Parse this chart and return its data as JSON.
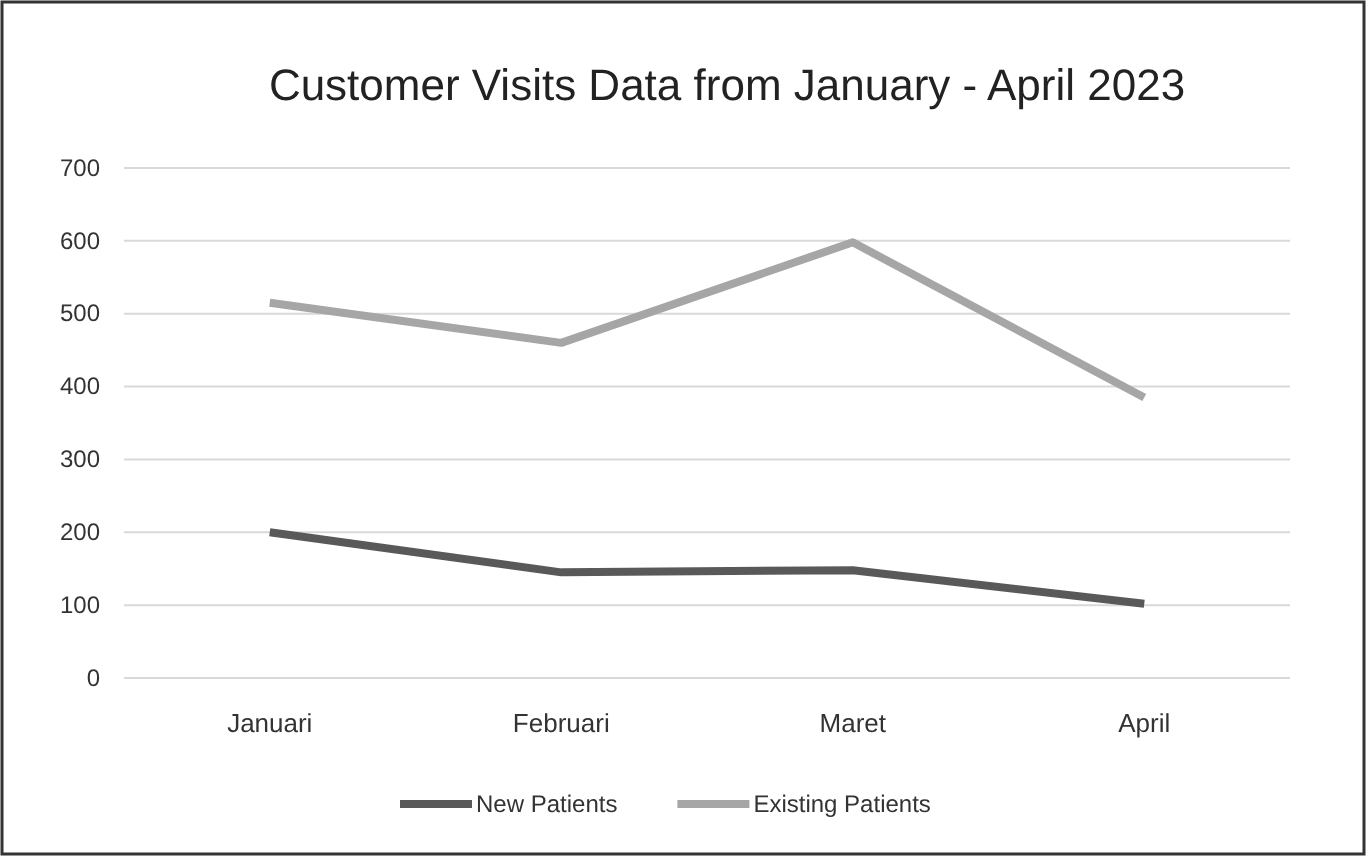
{
  "chart_data": {
    "type": "line",
    "title": "Customer Visits Data from January - April 2023",
    "categories": [
      "Januari",
      "Februari",
      "Maret",
      "April"
    ],
    "series": [
      {
        "name": "New Patients",
        "color": "#595959",
        "values": [
          200,
          145,
          148,
          102
        ]
      },
      {
        "name": "Existing Patients",
        "color": "#a6a6a6",
        "values": [
          515,
          460,
          598,
          385
        ]
      }
    ],
    "ylim": [
      0,
      700
    ],
    "yticks": [
      0,
      100,
      200,
      300,
      400,
      500,
      600,
      700
    ],
    "grid": "y",
    "legend": "bottom",
    "marker": "none",
    "line_style": "solid"
  }
}
